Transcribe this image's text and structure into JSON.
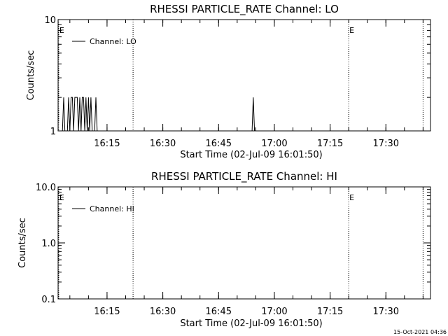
{
  "footer": {
    "timestamp": "15-Oct-2021 04:36"
  },
  "chart_data": [
    {
      "type": "line",
      "title": "RHESSI PARTICLE_RATE Channel: LO",
      "xlabel": "Start Time (02-Jul-09 16:01:50)",
      "ylabel": "Counts/sec",
      "yscale": "log",
      "ylim": [
        1,
        10
      ],
      "yticks": [
        {
          "value": 1,
          "label": "1"
        },
        {
          "value": 10,
          "label": "10"
        }
      ],
      "xlim": [
        "16:01:50",
        "17:42:00"
      ],
      "xticks": [
        {
          "value": "16:15",
          "label": "16:15"
        },
        {
          "value": "16:30",
          "label": "16:30"
        },
        {
          "value": "16:45",
          "label": "16:45"
        },
        {
          "value": "17:00",
          "label": "17:00"
        },
        {
          "value": "17:15",
          "label": "17:15"
        },
        {
          "value": "17:30",
          "label": "17:30"
        }
      ],
      "legend": {
        "position": "top-left",
        "label": "Channel: LO"
      },
      "event_lines": [
        {
          "time": "16:02:00",
          "label": "E"
        },
        {
          "time": "16:22:00",
          "label": ""
        },
        {
          "time": "17:20:00",
          "label": "E"
        },
        {
          "time": "17:40:00",
          "label": ""
        }
      ],
      "series": [
        {
          "name": "Channel: LO",
          "points": [
            [
              "16:02:00",
              1
            ],
            [
              "16:03:00",
              1
            ],
            [
              "16:03:20",
              2
            ],
            [
              "16:03:40",
              1
            ],
            [
              "16:04:20",
              1
            ],
            [
              "16:04:40",
              2
            ],
            [
              "16:05:00",
              1
            ],
            [
              "16:05:20",
              2
            ],
            [
              "16:05:40",
              2
            ],
            [
              "16:06:00",
              1
            ],
            [
              "16:06:20",
              2
            ],
            [
              "16:07:00",
              2
            ],
            [
              "16:07:20",
              1
            ],
            [
              "16:07:40",
              2
            ],
            [
              "16:08:00",
              1
            ],
            [
              "16:08:20",
              2
            ],
            [
              "16:08:40",
              2
            ],
            [
              "16:09:00",
              1
            ],
            [
              "16:09:20",
              2
            ],
            [
              "16:09:40",
              1
            ],
            [
              "16:10:00",
              2
            ],
            [
              "16:10:20",
              1
            ],
            [
              "16:10:40",
              2
            ],
            [
              "16:11:00",
              1
            ],
            [
              "16:11:40",
              1
            ],
            [
              "16:12:00",
              2
            ],
            [
              "16:12:20",
              1
            ],
            [
              "16:13:00",
              1
            ],
            [
              "16:54:00",
              1
            ],
            [
              "16:54:20",
              2
            ],
            [
              "16:54:40",
              1
            ],
            [
              "16:55:00",
              1
            ]
          ]
        }
      ]
    },
    {
      "type": "line",
      "title": "RHESSI PARTICLE_RATE Channel: HI",
      "xlabel": "Start Time (02-Jul-09 16:01:50)",
      "ylabel": "Counts/sec",
      "yscale": "log",
      "ylim": [
        0.1,
        10
      ],
      "yticks": [
        {
          "value": 0.1,
          "label": "0.1"
        },
        {
          "value": 1,
          "label": "1.0"
        },
        {
          "value": 10,
          "label": "10.0"
        }
      ],
      "xlim": [
        "16:01:50",
        "17:42:00"
      ],
      "xticks": [
        {
          "value": "16:15",
          "label": "16:15"
        },
        {
          "value": "16:30",
          "label": "16:30"
        },
        {
          "value": "16:45",
          "label": "16:45"
        },
        {
          "value": "17:00",
          "label": "17:00"
        },
        {
          "value": "17:15",
          "label": "17:15"
        },
        {
          "value": "17:30",
          "label": "17:30"
        }
      ],
      "legend": {
        "position": "top-left",
        "label": "Channel: HI"
      },
      "event_lines": [
        {
          "time": "16:02:00",
          "label": "E"
        },
        {
          "time": "16:22:00",
          "label": ""
        },
        {
          "time": "17:20:00",
          "label": "E"
        },
        {
          "time": "17:40:00",
          "label": ""
        }
      ],
      "series": [
        {
          "name": "Channel: HI",
          "points": []
        }
      ]
    }
  ]
}
